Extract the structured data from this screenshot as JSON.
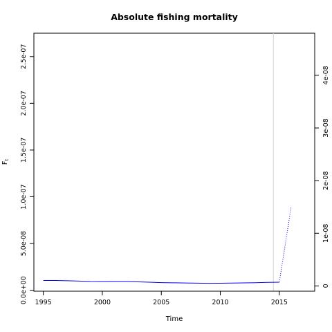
{
  "chart_data": {
    "type": "line",
    "title": "Absolute fishing mortality",
    "xlabel": "Time",
    "ylabel_main": "F",
    "ylabel_sub": "t",
    "xlim": [
      1994.2,
      2018.0
    ],
    "ylim_left": [
      -1e-09,
      2.75e-07
    ],
    "ylim_right": [
      -1e-09,
      4.8e-08
    ],
    "x_ticks": [
      1995,
      2000,
      2005,
      2010,
      2015
    ],
    "x_tick_labels": [
      "1995",
      "2000",
      "2005",
      "2010",
      "2015"
    ],
    "y_left_ticks": [
      0,
      5e-08,
      1e-07,
      1.5e-07,
      2e-07,
      2.5e-07
    ],
    "y_left_tick_labels": [
      "0.0e+00",
      "5.0e-08",
      "1.0e-07",
      "1.5e-07",
      "2.0e-07",
      "2.5e-07"
    ],
    "y_right_ticks": [
      0,
      1e-08,
      2e-08,
      3e-08,
      4e-08
    ],
    "y_right_tick_labels": [
      "0",
      "1e-08",
      "2e-08",
      "3e-08",
      "4e-08"
    ],
    "vline_x": 2014.5,
    "series": [
      {
        "style": "solid",
        "color": "#0000ee",
        "x": [
          1995,
          1996,
          1997,
          1998,
          1999,
          2000,
          2001,
          2002,
          2003,
          2004,
          2005,
          2006,
          2007,
          2008,
          2009,
          2010,
          2011,
          2012,
          2013,
          2014,
          2015
        ],
        "y": [
          1.05e-08,
          1.05e-08,
          1.02e-08,
          9.8e-09,
          9.4e-09,
          9.3e-09,
          9.4e-09,
          9.4e-09,
          9e-09,
          8.6e-09,
          8.2e-09,
          8e-09,
          7.8e-09,
          7.6e-09,
          7.4e-09,
          7.5e-09,
          7.7e-09,
          7.9e-09,
          8.1e-09,
          8.4e-09,
          8.6e-09
        ]
      },
      {
        "style": "dotted",
        "color": "#0000ee",
        "x": [
          2015,
          2016
        ],
        "y": [
          8.6e-09,
          8.9e-08
        ]
      }
    ]
  }
}
